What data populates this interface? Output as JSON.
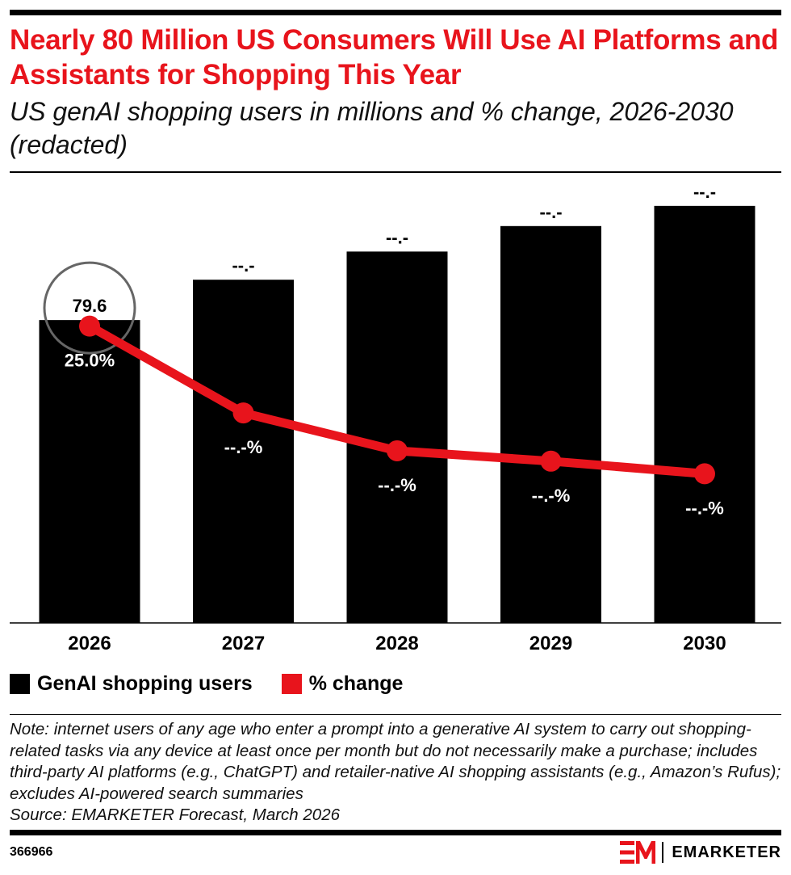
{
  "title": "Nearly 80 Million US Consumers Will Use AI Platforms and Assistants for Shopping This Year",
  "subtitle": "US genAI shopping users in millions and % change, 2026-2030 (redacted)",
  "colors": {
    "bar": "#000000",
    "line": "#e8141c",
    "title": "#e8141c",
    "highlight_circle": "#666666"
  },
  "chart_data": {
    "type": "bar",
    "categories": [
      "2026",
      "2027",
      "2028",
      "2029",
      "2030"
    ],
    "series": [
      {
        "name": "GenAI shopping users",
        "type": "bar",
        "values": [
          79.6,
          90.2,
          97.6,
          104.3,
          109.6
        ],
        "labels": [
          "79.6",
          "--.-",
          "--.-",
          "--.-",
          "--.-"
        ]
      },
      {
        "name": "% change",
        "type": "line",
        "values": [
          25.0,
          13.3,
          8.2,
          6.8,
          5.1
        ],
        "labels": [
          "25.0%",
          "--.-%",
          "--.-%",
          "--.-%",
          "--.-%"
        ]
      }
    ],
    "highlighted_category": "2026",
    "bar_ylim": [
      0,
      117
    ],
    "line_ylim": [
      -15,
      45
    ],
    "grid": false,
    "legend_position": "bottom-left"
  },
  "legend": [
    {
      "label": "GenAI shopping users",
      "color": "#000000"
    },
    {
      "label": "% change",
      "color": "#e8141c"
    }
  ],
  "note": "Note: internet users of any age who enter a prompt into a generative AI system to carry out shopping-related tasks via any device at least once per month but do not necessarily make a purchase; includes third-party AI platforms (e.g., ChatGPT) and retailer-native AI shopping assistants (e.g., Amazon’s Rufus); excludes AI-powered search summaries",
  "source": "Source: EMARKETER Forecast, March 2026",
  "chart_id": "366966",
  "brand": {
    "name": "EMARKETER",
    "icon": "em-logo-icon"
  }
}
